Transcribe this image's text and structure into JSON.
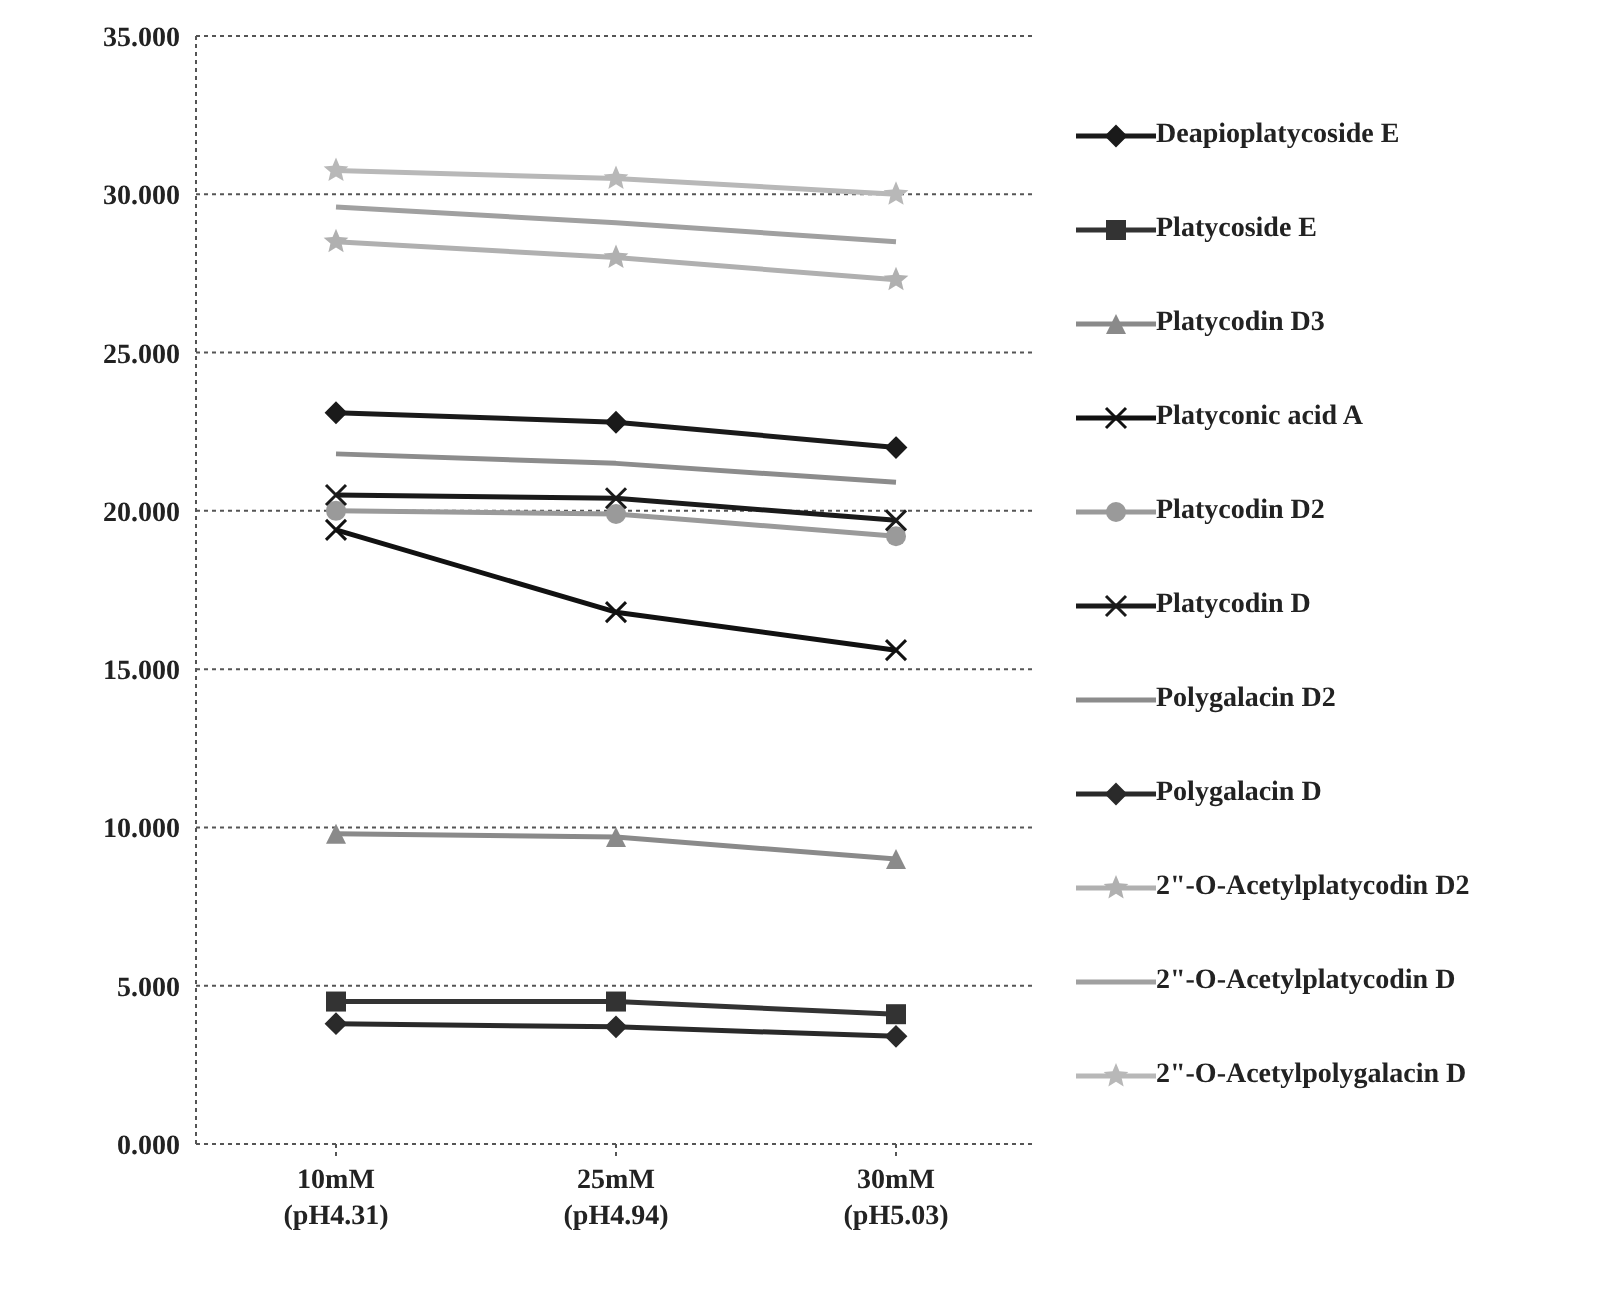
{
  "chart_data": {
    "type": "line",
    "categories": [
      "10mM\n(pH4.31)",
      "25mM\n(pH4.94)",
      "30mM\n(pH5.03)"
    ],
    "ylim": [
      0,
      35
    ],
    "yticks": [
      {
        "value": 0,
        "label": "0.000"
      },
      {
        "value": 5,
        "label": "5.000"
      },
      {
        "value": 10,
        "label": "10.000"
      },
      {
        "value": 15,
        "label": "15.000"
      },
      {
        "value": 20,
        "label": "20.000"
      },
      {
        "value": 25,
        "label": "25.000"
      },
      {
        "value": 30,
        "label": "30.000"
      },
      {
        "value": 35,
        "label": "35.000"
      }
    ],
    "grid": "y",
    "legend": "right",
    "series": [
      {
        "name": "Deapioplatycoside E",
        "color": "#1a1a1a",
        "marker": "diamond",
        "values": [
          23.1,
          22.8,
          22.0
        ]
      },
      {
        "name": "Platycoside E",
        "color": "#333333",
        "marker": "square",
        "values": [
          4.5,
          4.5,
          4.1
        ]
      },
      {
        "name": "Platycodin D3",
        "color": "#8a8a8a",
        "marker": "triangle",
        "values": [
          9.8,
          9.7,
          9.0
        ]
      },
      {
        "name": "Platyconic acid A",
        "color": "#111111",
        "marker": "cross",
        "values": [
          19.4,
          16.8,
          15.6
        ]
      },
      {
        "name": "Platycodin D2",
        "color": "#9a9a9a",
        "marker": "circle",
        "values": [
          20.0,
          19.9,
          19.2
        ]
      },
      {
        "name": "Platycodin D",
        "color": "#1a1a1a",
        "marker": "cross",
        "values": [
          20.5,
          20.4,
          19.7
        ]
      },
      {
        "name": "Polygalacin D2",
        "color": "#8c8c8c",
        "marker": "none",
        "values": [
          21.8,
          21.5,
          20.9
        ]
      },
      {
        "name": "Polygalacin D",
        "color": "#2a2a2a",
        "marker": "diamond",
        "values": [
          3.8,
          3.7,
          3.4
        ]
      },
      {
        "name": "2\"-O-Acetylplatycodin D2",
        "color": "#b0b0b0",
        "marker": "star",
        "values": [
          28.5,
          28.0,
          27.3
        ]
      },
      {
        "name": "2\"-O-Acetylplatycodin D",
        "color": "#a0a0a0",
        "marker": "none",
        "values": [
          29.6,
          29.1,
          28.5
        ]
      },
      {
        "name": "2\"-O-Acetylpolygalacin D",
        "color": "#b8b8b8",
        "marker": "star",
        "values": [
          30.75,
          30.5,
          30.0
        ]
      }
    ]
  }
}
